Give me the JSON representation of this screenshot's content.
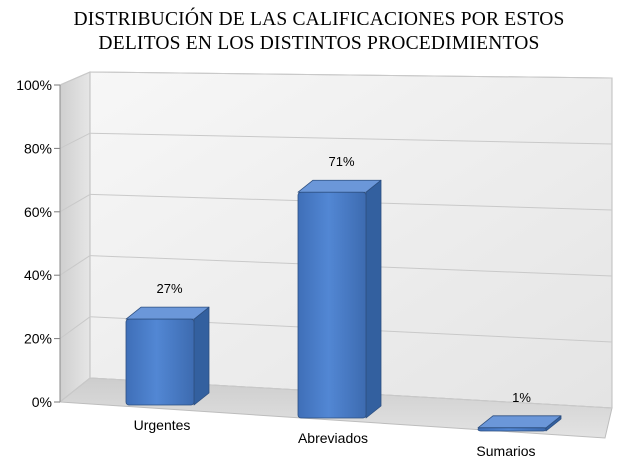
{
  "chart_data": {
    "type": "bar",
    "title_lines": [
      "DISTRIBUCIÓN DE LAS CALIFICACIONES POR ESTOS",
      "DELITOS EN  LOS DISTINTOS PROCEDIMIENTOS"
    ],
    "categories": [
      "Urgentes",
      "Abreviados",
      "Sumarios"
    ],
    "values": [
      27,
      71,
      1
    ],
    "data_labels": [
      "27%",
      "71%",
      "1%"
    ],
    "yticks": [
      "0%",
      "20%",
      "40%",
      "60%",
      "80%",
      "100%"
    ],
    "ylim": [
      0,
      100
    ],
    "grid": true,
    "three_d": true,
    "colors": {
      "bar_front": "#4a7cc6",
      "bar_top": "#6b97d9",
      "bar_side": "#33609f",
      "bar_edge": "#2d4f80",
      "grid": "#c9c9c9",
      "wall": "#eaeaea",
      "floor": "#d6d6d6"
    }
  }
}
